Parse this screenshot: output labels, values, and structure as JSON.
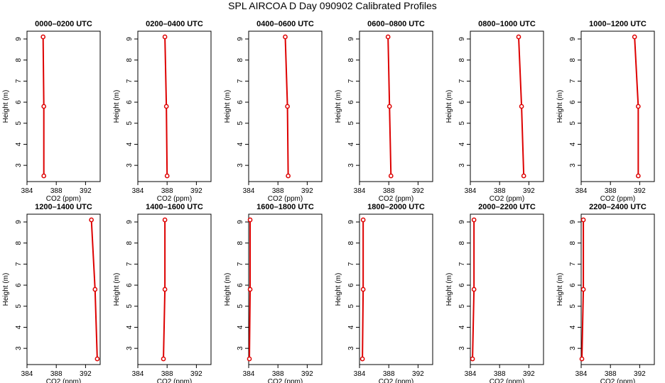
{
  "title": "SPL AIRCOA D  Day 090902  Calibrated Profiles",
  "colors": {
    "series": "#dd0000",
    "axis": "#000000",
    "background": "#ffffff"
  },
  "chart_data": {
    "type": "line",
    "grid": false,
    "xlabel": "CO2 (ppm)",
    "ylabel": "Height (m)",
    "xlim": [
      384,
      394
    ],
    "ylim": [
      2.5,
      9.1
    ],
    "xticks": [
      384,
      388,
      392
    ],
    "yticks": [
      3,
      4,
      5,
      6,
      7,
      8,
      9
    ],
    "heights": [
      2.5,
      5.8,
      9.1
    ],
    "panels": [
      {
        "title": "0000–0200 UTC",
        "co2": [
          386.3,
          386.3,
          386.2
        ]
      },
      {
        "title": "0200–0400 UTC",
        "co2": [
          388.0,
          387.9,
          387.7
        ]
      },
      {
        "title": "0400–0600 UTC",
        "co2": [
          389.4,
          389.3,
          389.0
        ]
      },
      {
        "title": "0600–0800 UTC",
        "co2": [
          388.3,
          388.1,
          387.9
        ]
      },
      {
        "title": "0800–1000 UTC",
        "co2": [
          391.3,
          391.0,
          390.6
        ]
      },
      {
        "title": "1000–1200 UTC",
        "co2": [
          391.8,
          391.8,
          391.3
        ]
      },
      {
        "title": "1200–1400 UTC",
        "co2": [
          393.6,
          393.3,
          392.8
        ]
      },
      {
        "title": "1400–1600 UTC",
        "co2": [
          387.5,
          387.7,
          387.7
        ]
      },
      {
        "title": "1600–1800 UTC",
        "co2": [
          384.1,
          384.2,
          384.2
        ]
      },
      {
        "title": "1800–2000 UTC",
        "co2": [
          384.4,
          384.5,
          384.5
        ]
      },
      {
        "title": "2000–2200 UTC",
        "co2": [
          384.3,
          384.5,
          384.5
        ]
      },
      {
        "title": "2200–2400 UTC",
        "co2": [
          384.1,
          384.3,
          384.3
        ]
      }
    ]
  }
}
